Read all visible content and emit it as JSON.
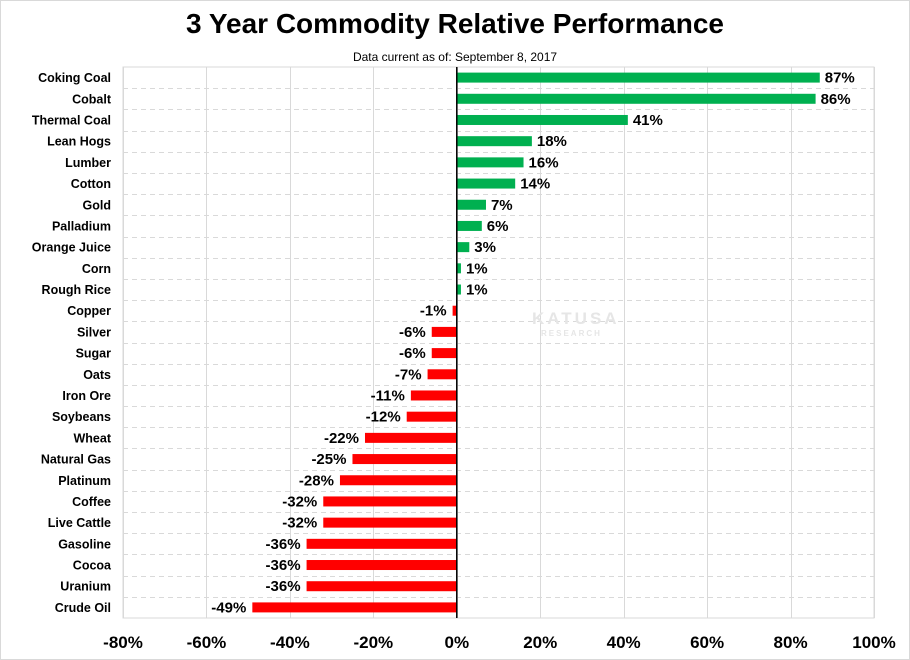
{
  "chart_data": {
    "type": "bar",
    "orientation": "horizontal",
    "title": "3 Year Commodity Relative Performance",
    "subtitle": "Data current as of: September 8, 2017",
    "xlabel": "",
    "ylabel": "",
    "xlim": [
      -80,
      100
    ],
    "xticks": [
      -80,
      -60,
      -40,
      -20,
      0,
      20,
      40,
      60,
      80,
      100
    ],
    "tick_labels": [
      "-80%",
      "-60%",
      "-40%",
      "-20%",
      "0%",
      "20%",
      "40%",
      "60%",
      "80%",
      "100%"
    ],
    "grid": true,
    "legend": "none",
    "watermark": {
      "line1": "KATUSA",
      "line2": "RESEARCH"
    },
    "colors": {
      "positive": "#00b050",
      "negative": "#ff0000",
      "grid": "#d9d9d9",
      "axis": "#000000"
    },
    "categories": [
      "Coking Coal",
      "Cobalt",
      "Thermal Coal",
      "Lean Hogs",
      "Lumber",
      "Cotton",
      "Gold",
      "Palladium",
      "Orange Juice",
      "Corn",
      "Rough Rice",
      "Copper",
      "Silver",
      "Sugar",
      "Oats",
      "Iron Ore",
      "Soybeans",
      "Wheat",
      "Natural Gas",
      "Platinum",
      "Coffee",
      "Live Cattle",
      "Gasoline",
      "Cocoa",
      "Uranium",
      "Crude Oil"
    ],
    "values": [
      87,
      86,
      41,
      18,
      16,
      14,
      7,
      6,
      3,
      1,
      1,
      -1,
      -6,
      -6,
      -7,
      -11,
      -12,
      -22,
      -25,
      -28,
      -32,
      -32,
      -36,
      -36,
      -36,
      -49
    ],
    "value_labels": [
      "87%",
      "86%",
      "41%",
      "18%",
      "16%",
      "14%",
      "7%",
      "6%",
      "3%",
      "1%",
      "1%",
      "-1%",
      "-6%",
      "-6%",
      "-7%",
      "-11%",
      "-12%",
      "-22%",
      "-25%",
      "-28%",
      "-32%",
      "-32%",
      "-36%",
      "-36%",
      "-36%",
      "-49%"
    ]
  }
}
